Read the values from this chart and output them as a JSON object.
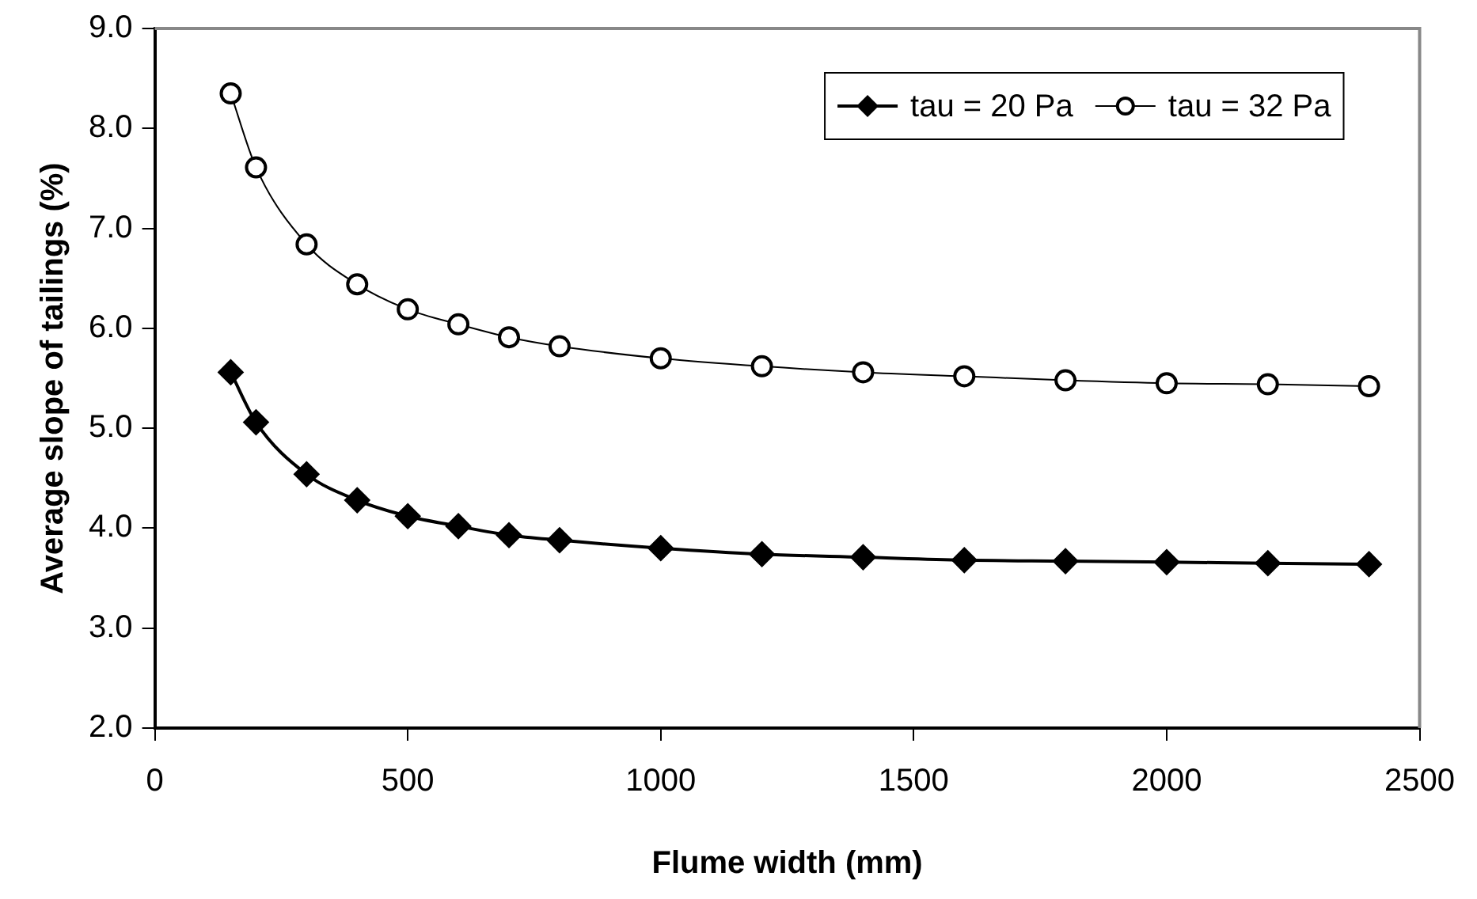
{
  "chart_data": {
    "type": "line",
    "xlabel": "Flume width (mm)",
    "ylabel": "Average slope of tailings (%)",
    "x": [
      150,
      200,
      300,
      400,
      500,
      600,
      700,
      800,
      1000,
      1200,
      1400,
      1600,
      1800,
      2000,
      2200,
      2400
    ],
    "series": [
      {
        "name": "tau = 20 Pa",
        "color": "#000000",
        "marker": "diamond",
        "values": [
          5.56,
          5.06,
          4.54,
          4.28,
          4.12,
          4.02,
          3.93,
          3.88,
          3.8,
          3.74,
          3.71,
          3.68,
          3.67,
          3.66,
          3.65,
          3.64
        ]
      },
      {
        "name": "tau = 32 Pa",
        "color": "#000000",
        "marker": "circle",
        "values": [
          8.35,
          7.61,
          6.84,
          6.44,
          6.19,
          6.04,
          5.91,
          5.82,
          5.7,
          5.62,
          5.56,
          5.52,
          5.48,
          5.45,
          5.44,
          5.42
        ]
      }
    ],
    "xlim": [
      0,
      2500
    ],
    "xticks": [
      0,
      500,
      1000,
      1500,
      2000,
      2500
    ],
    "ylim": [
      2.0,
      9.0
    ],
    "yticks": [
      {
        "value": 2,
        "label": "2.0"
      },
      {
        "value": 3,
        "label": "3.0"
      },
      {
        "value": 4,
        "label": "4.0"
      },
      {
        "value": 5,
        "label": "5.0"
      },
      {
        "value": 6,
        "label": "6.0"
      },
      {
        "value": 7,
        "label": "7.0"
      },
      {
        "value": 8,
        "label": "8.0"
      },
      {
        "value": 9,
        "label": "9.0"
      }
    ],
    "grid": false,
    "legend": "top right",
    "line_style": "solid"
  }
}
